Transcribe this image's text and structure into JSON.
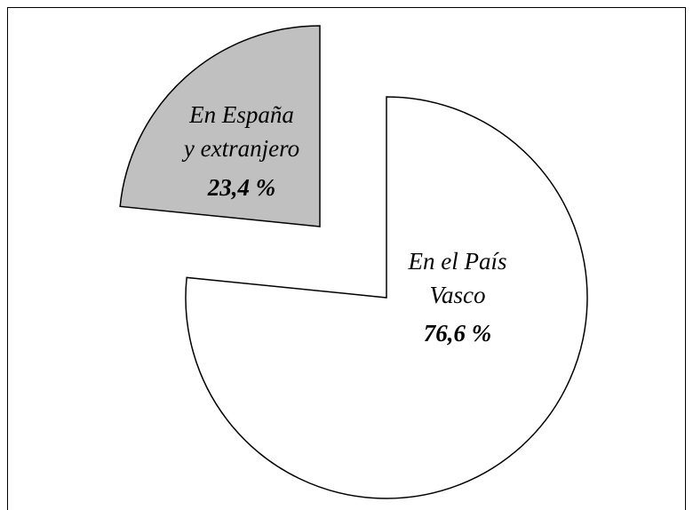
{
  "chart_data": {
    "type": "pie",
    "categories": [
      "En el País\nVasco",
      "En España\ny extranjero"
    ],
    "values": [
      76.6,
      23.4
    ],
    "value_labels": [
      "76,6 %",
      "23,4 %"
    ],
    "colors": [
      "#ffffff",
      "#c0c0c0"
    ]
  }
}
